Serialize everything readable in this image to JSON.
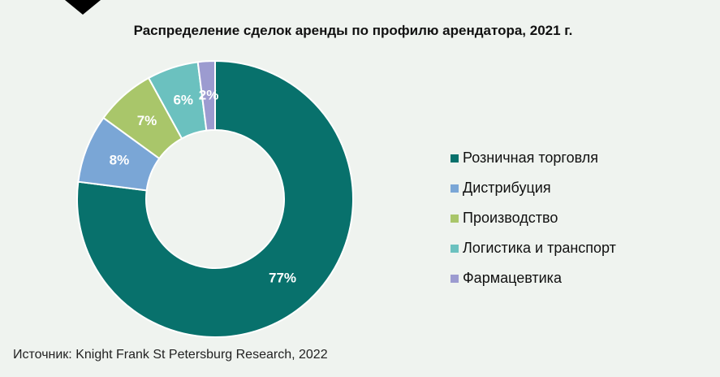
{
  "chart_data": {
    "type": "donut",
    "title": "Распределение сделок аренды по профилю арендатора, 2021 г.",
    "categories": [
      "Розничная торговля",
      "Дистрибуция",
      "Производство",
      "Логистика и транспорт",
      "Фармацевтика"
    ],
    "values": [
      77,
      8,
      7,
      6,
      2
    ],
    "value_labels": [
      "77%",
      "8%",
      "7%",
      "6%",
      "2%"
    ],
    "colors": [
      "#08716c",
      "#7aa6d6",
      "#a9c66a",
      "#6bc1bf",
      "#9c9bd0"
    ],
    "legend_position": "right",
    "source": "Источник: Knight Frank St Petersburg Research, 2022"
  }
}
